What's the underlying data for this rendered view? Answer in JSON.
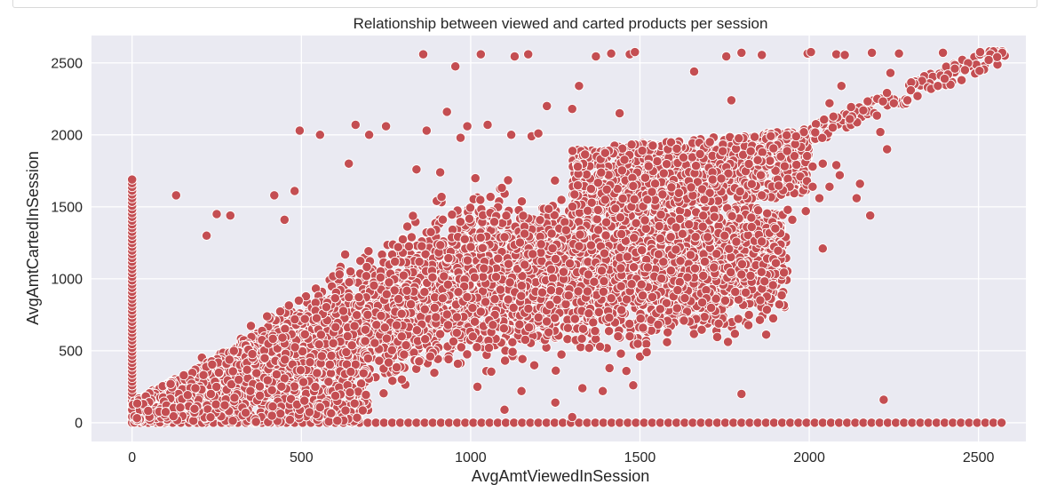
{
  "chart_data": {
    "type": "scatter",
    "title": "Relationship between viewed and carted products per session",
    "xlabel": "AvgAmtViewedInSession",
    "ylabel": "AvgAmtCartedInSession",
    "xlim": [
      -120,
      2640
    ],
    "ylim": [
      -130,
      2690
    ],
    "xticks": [
      0,
      500,
      1000,
      1500,
      2000,
      2500
    ],
    "yticks": [
      0,
      500,
      1000,
      1500,
      2000,
      2500
    ],
    "grid": true,
    "colors": {
      "marker": "#c44e52",
      "marker_edge": "#ffffff",
      "plot_background": "#eaeaf2",
      "grid": "#ffffff"
    },
    "series": [
      {
        "description_points": [
          [
            860,
            2560
          ],
          [
            955,
            2475
          ],
          [
            1030,
            2560
          ],
          [
            1130,
            2545
          ],
          [
            1170,
            2560
          ],
          [
            1370,
            2545
          ],
          [
            1415,
            2565
          ],
          [
            1470,
            2560
          ],
          [
            1485,
            2575
          ],
          [
            1755,
            2545
          ],
          [
            1800,
            2570
          ],
          [
            1860,
            2555
          ],
          [
            1995,
            2565
          ],
          [
            2005,
            2575
          ],
          [
            2080,
            2560
          ],
          [
            2105,
            2555
          ],
          [
            2185,
            2570
          ],
          [
            2265,
            2565
          ],
          [
            2395,
            2570
          ],
          [
            2505,
            2575
          ],
          [
            2535,
            2560
          ],
          [
            2570,
            2570
          ],
          [
            2555,
            2540
          ],
          [
            2530,
            2520
          ],
          [
            1660,
            2440
          ],
          [
            1320,
            2340
          ],
          [
            1225,
            2200
          ],
          [
            930,
            2160
          ],
          [
            1300,
            2180
          ],
          [
            1440,
            2150
          ],
          [
            1770,
            2240
          ],
          [
            2095,
            2340
          ],
          [
            2060,
            2220
          ],
          [
            2240,
            2430
          ],
          [
            2410,
            2420
          ],
          [
            2450,
            2380
          ],
          [
            2350,
            2330
          ],
          [
            2230,
            1900
          ],
          [
            1180,
            1990
          ],
          [
            495,
            2030
          ],
          [
            555,
            2000
          ],
          [
            660,
            2070
          ],
          [
            700,
            2000
          ],
          [
            750,
            2060
          ],
          [
            870,
            2030
          ],
          [
            970,
            1980
          ],
          [
            990,
            2060
          ],
          [
            1050,
            2070
          ],
          [
            1120,
            2000
          ],
          [
            1200,
            2010
          ],
          [
            130,
            1580
          ],
          [
            250,
            1450
          ],
          [
            290,
            1440
          ],
          [
            220,
            1300
          ],
          [
            420,
            1580
          ],
          [
            480,
            1610
          ],
          [
            450,
            1410
          ],
          [
            640,
            1800
          ],
          [
            840,
            1760
          ],
          [
            910,
            1740
          ],
          [
            2040,
            1210
          ],
          [
            1800,
            1030
          ],
          [
            1630,
            710
          ],
          [
            1800,
            200
          ],
          [
            2220,
            160
          ],
          [
            2180,
            1440
          ],
          [
            2140,
            1560
          ],
          [
            1950,
            1410
          ],
          [
            1990,
            1470
          ],
          [
            1860,
            1580
          ],
          [
            1330,
            240
          ],
          [
            1390,
            220
          ],
          [
            1480,
            260
          ],
          [
            1150,
            220
          ],
          [
            1250,
            140
          ],
          [
            1020,
            250
          ],
          [
            1100,
            90
          ],
          [
            1300,
            40
          ],
          [
            1500,
            460
          ],
          [
            1520,
            490
          ],
          [
            1560,
            790
          ],
          [
            1580,
            560
          ],
          [
            1460,
            360
          ],
          [
            1350,
            520
          ],
          [
            1410,
            380
          ],
          [
            1560,
            1280
          ],
          [
            1700,
            1290
          ],
          [
            1720,
            1430
          ],
          [
            1750,
            1300
          ],
          [
            1830,
            1360
          ],
          [
            1900,
            1350
          ],
          [
            2010,
            1640
          ],
          [
            2030,
            1560
          ],
          [
            2060,
            1640
          ],
          [
            2090,
            1720
          ],
          [
            2150,
            1660
          ],
          [
            2010,
            1780
          ],
          [
            2040,
            1800
          ],
          [
            2080,
            1790
          ],
          [
            2210,
            2020
          ],
          [
            2300,
            2310
          ],
          [
            2320,
            2270
          ],
          [
            2360,
            2320
          ],
          [
            2430,
            2460
          ],
          [
            2460,
            2450
          ],
          [
            2400,
            2390
          ],
          [
            2380,
            2340
          ],
          [
            2120,
            2110
          ],
          [
            2160,
            2170
          ],
          [
            2250,
            2220
          ],
          [
            2290,
            2240
          ]
        ],
        "x_zero_column": [
          0,
          1700
        ],
        "y_zero_row": [
          0,
          2580
        ],
        "dense_band": "points fill the region between roughly y = 0.4x (lower edge) and y = 1.6x (upper edge) for x from 0 to about 1900, densest between x 300 and 1700 and y 200 and 1700",
        "diagonal_trail": "from (1700, 1700) up to (2580, 2580) points follow y = x"
      }
    ]
  }
}
